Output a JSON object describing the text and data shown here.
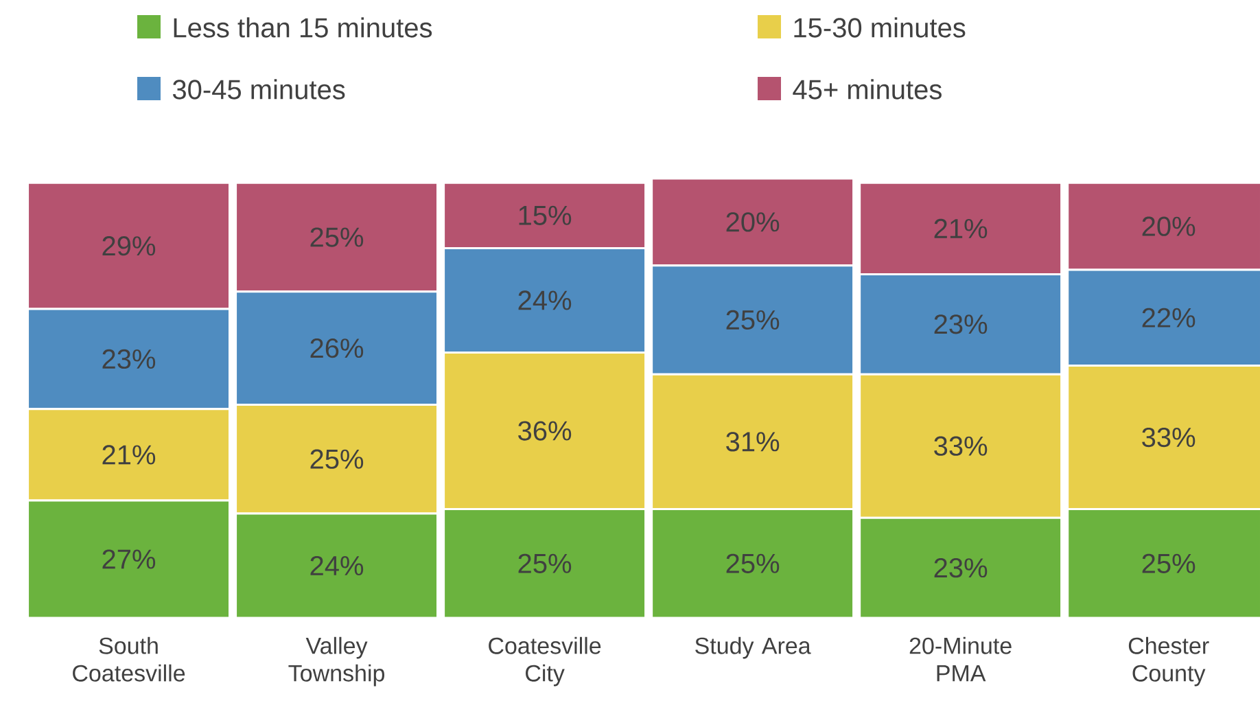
{
  "chart_data": {
    "type": "bar",
    "stacked": true,
    "legend": "top",
    "categories": [
      "South Coatesville",
      "Valley Township",
      "Coatesville City",
      "Study Area",
      "20-Minute PMA",
      "Chester County"
    ],
    "series": [
      {
        "name": "Less than 15 minutes",
        "color": "#6bb33e",
        "values": [
          27,
          24,
          25,
          25,
          23,
          25
        ],
        "value_labels": [
          "27%",
          "24%",
          "25%",
          "25%",
          "23%",
          "25%"
        ]
      },
      {
        "name": "15-30 minutes",
        "color": "#e8cf4a",
        "values": [
          21,
          25,
          36,
          31,
          33,
          33
        ],
        "value_labels": [
          "21%",
          "25%",
          "36%",
          "31%",
          "33%",
          "33%"
        ]
      },
      {
        "name": "30-45 minutes",
        "color": "#4f8cc0",
        "values": [
          23,
          26,
          24,
          25,
          23,
          22
        ],
        "value_labels": [
          "23%",
          "26%",
          "24%",
          "25%",
          "23%",
          "22%"
        ]
      },
      {
        "name": "45+ minutes",
        "color": "#b5536f",
        "values": [
          29,
          25,
          15,
          20,
          21,
          20
        ],
        "value_labels": [
          "29%",
          "25%",
          "15%",
          "20%",
          "21%",
          "20%"
        ]
      }
    ]
  }
}
